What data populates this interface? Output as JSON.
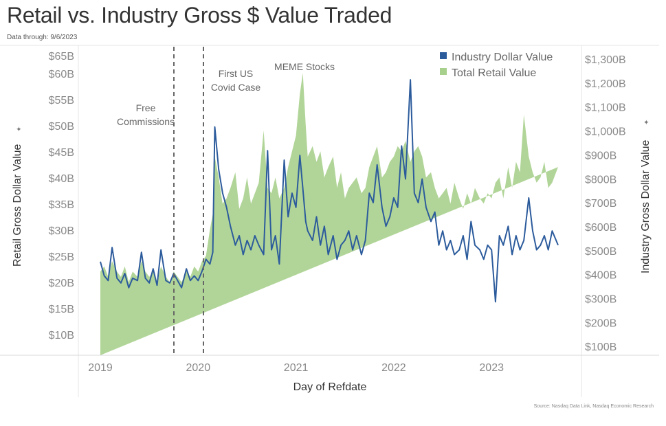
{
  "header": {
    "title": "Retail vs. Industry Gross $ Value Traded",
    "subtitle": "Data through: 9/6/2023"
  },
  "footer": {
    "source": "Source: Nasdaq Data Link, Nasdaq Economic Research"
  },
  "chart_data": {
    "type": "area+line",
    "title": "Retail vs. Industry Gross $ Value Traded",
    "subtitle": "Data through: 9/6/2023",
    "xlabel": "Day of Refdate",
    "ylabel_left": "Retail Gross Dollar Value",
    "ylabel_right": "Industry Gross Dollar Value",
    "x_ticks": [
      "2019",
      "2020",
      "2021",
      "2022",
      "2023"
    ],
    "y_left_ticks": [
      "$65B",
      "$60B",
      "$55B",
      "$50B",
      "$45B",
      "$40B",
      "$35B",
      "$30B",
      "$25B",
      "$20B",
      "$15B",
      "$10B"
    ],
    "y_right_ticks": [
      "$1,300B",
      "$1,200B",
      "$1,100B",
      "$1,000B",
      "$900B",
      "$800B",
      "$700B",
      "$600B",
      "$500B",
      "$400B",
      "$300B",
      "$200B",
      "$100B"
    ],
    "ylim_left_billions": [
      6,
      61.6
    ],
    "ylim_right_billions": [
      14,
      1314
    ],
    "x_range": [
      "2019-01-02",
      "2023-09-06"
    ],
    "grid": false,
    "legend_position": "top-right",
    "legend": [
      {
        "name": "Industry Dollar Value",
        "color": "#2c5b9c"
      },
      {
        "name": "Total Retail Value",
        "color": "#a8d08d"
      }
    ],
    "annotations": [
      {
        "text": [
          "Free",
          "Commissions"
        ],
        "date": "2019-10-01"
      },
      {
        "text": [
          "First US",
          "Covid Case"
        ],
        "date": "2020-01-21"
      },
      {
        "text": [
          "MEME Stocks"
        ],
        "date": "2021-01-27"
      }
    ],
    "series": [
      {
        "name": "Total Retail Value",
        "axis": "left",
        "unit": "billions USD",
        "x_year_fraction": [
          2019.0,
          2019.04,
          2019.08,
          2019.12,
          2019.17,
          2019.21,
          2019.25,
          2019.29,
          2019.33,
          2019.38,
          2019.42,
          2019.46,
          2019.5,
          2019.54,
          2019.58,
          2019.62,
          2019.67,
          2019.71,
          2019.75,
          2019.79,
          2019.83,
          2019.88,
          2019.92,
          2019.96,
          2020.0,
          2020.04,
          2020.08,
          2020.12,
          2020.15,
          2020.17,
          2020.21,
          2020.25,
          2020.29,
          2020.33,
          2020.38,
          2020.42,
          2020.46,
          2020.5,
          2020.54,
          2020.58,
          2020.62,
          2020.67,
          2020.71,
          2020.75,
          2020.79,
          2020.83,
          2020.88,
          2020.92,
          2020.96,
          2021.0,
          2021.04,
          2021.07,
          2021.1,
          2021.12,
          2021.17,
          2021.21,
          2021.25,
          2021.29,
          2021.33,
          2021.38,
          2021.42,
          2021.46,
          2021.5,
          2021.54,
          2021.58,
          2021.62,
          2021.67,
          2021.71,
          2021.75,
          2021.79,
          2021.83,
          2021.88,
          2021.92,
          2021.96,
          2022.0,
          2022.04,
          2022.08,
          2022.12,
          2022.17,
          2022.21,
          2022.25,
          2022.29,
          2022.33,
          2022.38,
          2022.42,
          2022.46,
          2022.5,
          2022.54,
          2022.58,
          2022.62,
          2022.67,
          2022.71,
          2022.75,
          2022.79,
          2022.83,
          2022.88,
          2022.92,
          2022.96,
          2023.0,
          2023.04,
          2023.08,
          2023.12,
          2023.17,
          2023.21,
          2023.25,
          2023.29,
          2023.33,
          2023.38,
          2023.42,
          2023.46,
          2023.5,
          2023.54,
          2023.58,
          2023.62,
          2023.68
        ],
        "values": [
          22,
          23,
          21,
          24,
          22,
          21,
          23,
          20,
          22,
          21,
          24,
          22,
          21,
          22,
          20,
          23,
          21,
          20,
          22,
          21,
          20,
          22,
          21,
          23,
          22,
          24,
          25,
          30,
          33,
          44,
          40,
          35,
          36,
          38,
          41,
          34,
          36,
          40,
          35,
          37,
          39,
          49,
          38,
          37,
          40,
          36,
          38,
          42,
          45,
          48,
          56,
          60,
          50,
          44,
          46,
          43,
          45,
          40,
          42,
          44,
          38,
          41,
          36,
          38,
          39,
          40,
          37,
          38,
          42,
          44,
          46,
          40,
          41,
          43,
          44,
          46,
          45,
          47,
          43,
          45,
          46,
          44,
          40,
          41,
          38,
          36,
          37,
          38,
          35,
          39,
          36,
          34,
          37,
          35,
          38,
          36,
          35,
          37,
          36,
          39,
          40,
          36,
          42,
          38,
          43,
          41,
          52,
          44,
          41,
          39,
          40,
          43,
          38,
          39,
          42,
          40,
          37
        ]
      },
      {
        "name": "Industry Dollar Value",
        "axis": "right",
        "unit": "billions USD",
        "x_year_fraction": [
          2019.0,
          2019.04,
          2019.08,
          2019.12,
          2019.17,
          2019.21,
          2019.25,
          2019.29,
          2019.33,
          2019.38,
          2019.42,
          2019.46,
          2019.5,
          2019.54,
          2019.58,
          2019.62,
          2019.67,
          2019.71,
          2019.75,
          2019.79,
          2019.83,
          2019.88,
          2019.92,
          2019.96,
          2020.0,
          2020.04,
          2020.08,
          2020.12,
          2020.15,
          2020.17,
          2020.21,
          2020.25,
          2020.29,
          2020.33,
          2020.38,
          2020.42,
          2020.46,
          2020.5,
          2020.54,
          2020.58,
          2020.62,
          2020.67,
          2020.71,
          2020.75,
          2020.79,
          2020.83,
          2020.88,
          2020.92,
          2020.96,
          2021.0,
          2021.04,
          2021.07,
          2021.1,
          2021.12,
          2021.17,
          2021.21,
          2021.25,
          2021.29,
          2021.33,
          2021.38,
          2021.42,
          2021.46,
          2021.5,
          2021.54,
          2021.58,
          2021.62,
          2021.67,
          2021.71,
          2021.75,
          2021.79,
          2021.83,
          2021.88,
          2021.92,
          2021.96,
          2022.0,
          2022.04,
          2022.08,
          2022.12,
          2022.17,
          2022.21,
          2022.25,
          2022.29,
          2022.33,
          2022.38,
          2022.42,
          2022.46,
          2022.5,
          2022.54,
          2022.58,
          2022.62,
          2022.67,
          2022.71,
          2022.75,
          2022.79,
          2022.83,
          2022.88,
          2022.92,
          2022.96,
          2023.0,
          2023.04,
          2023.08,
          2023.12,
          2023.17,
          2023.21,
          2023.25,
          2023.29,
          2023.33,
          2023.38,
          2023.42,
          2023.46,
          2023.5,
          2023.54,
          2023.58,
          2023.62,
          2023.68
        ],
        "values": [
          410,
          350,
          330,
          470,
          340,
          320,
          360,
          300,
          340,
          330,
          450,
          340,
          320,
          380,
          310,
          460,
          330,
          320,
          360,
          330,
          300,
          380,
          330,
          350,
          330,
          370,
          420,
          400,
          450,
          980,
          800,
          700,
          640,
          560,
          480,
          520,
          440,
          500,
          460,
          520,
          480,
          440,
          880,
          460,
          520,
          400,
          840,
          600,
          700,
          640,
          860,
          720,
          580,
          540,
          500,
          600,
          480,
          560,
          440,
          520,
          420,
          480,
          500,
          540,
          460,
          520,
          440,
          500,
          700,
          660,
          820,
          640,
          560,
          600,
          680,
          640,
          900,
          760,
          1180,
          700,
          660,
          760,
          640,
          580,
          620,
          480,
          540,
          460,
          500,
          440,
          460,
          520,
          420,
          580,
          480,
          460,
          420,
          480,
          460,
          240,
          520,
          480,
          560,
          440,
          520,
          460,
          500,
          680,
          540,
          460,
          480,
          520,
          460,
          540,
          480
        ]
      }
    ]
  }
}
